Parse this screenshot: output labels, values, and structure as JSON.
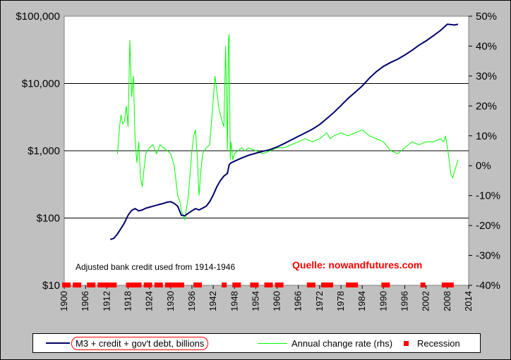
{
  "chart_data": {
    "type": "line",
    "y_scale": "log",
    "grid": "horizontal",
    "legend_placement": "bottom",
    "x_ticks": [
      1900,
      1906,
      1912,
      1918,
      1924,
      1930,
      1936,
      1942,
      1948,
      1954,
      1960,
      1966,
      1972,
      1978,
      1984,
      1990,
      1996,
      2002,
      2008,
      2014
    ],
    "xlim": [
      1900,
      2014
    ],
    "y_ticks": [
      "$10",
      "$100",
      "$1,000",
      "$10,000",
      "$100,000"
    ],
    "y_tick_values": [
      10,
      100,
      1000,
      10000,
      100000
    ],
    "ylim": [
      10,
      100000
    ],
    "y2_ticks": [
      "50%",
      "40%",
      "30%",
      "20%",
      "10%",
      "0%",
      "-10%",
      "-20%",
      "-30%",
      "-40%"
    ],
    "y2_tick_values": [
      50,
      40,
      30,
      20,
      10,
      0,
      -10,
      -20,
      -30,
      -40
    ],
    "y2lim": [
      -40,
      50
    ],
    "annotations": {
      "note": "Adjusted bank credit used from 1914-1946",
      "source": "Quelle: nowandfutures.com"
    },
    "series": [
      {
        "name": "M3 + credit + gov't debt, billions",
        "axis": "left",
        "color": "#00006a",
        "x": [
          1913,
          1914,
          1915,
          1916,
          1917,
          1918,
          1919,
          1920,
          1921,
          1922,
          1923,
          1924,
          1925,
          1926,
          1927,
          1928,
          1929,
          1930,
          1931,
          1932,
          1933,
          1934,
          1935,
          1936,
          1937,
          1938,
          1939,
          1940,
          1941,
          1942,
          1943,
          1944,
          1945,
          1946,
          1946.5,
          1947,
          1948,
          1950,
          1952,
          1954,
          1956,
          1958,
          1960,
          1962,
          1964,
          1966,
          1968,
          1970,
          1972,
          1974,
          1976,
          1978,
          1980,
          1982,
          1984,
          1986,
          1988,
          1990,
          1992,
          1994,
          1996,
          1998,
          2000,
          2002,
          2004,
          2006,
          2007,
          2008,
          2009,
          2010,
          2011
        ],
        "values": [
          48,
          50,
          58,
          70,
          85,
          110,
          130,
          138,
          128,
          132,
          140,
          145,
          150,
          155,
          160,
          165,
          172,
          175,
          165,
          150,
          110,
          108,
          118,
          128,
          138,
          132,
          140,
          150,
          175,
          220,
          290,
          360,
          420,
          460,
          620,
          660,
          700,
          780,
          860,
          920,
          980,
          1040,
          1140,
          1280,
          1450,
          1640,
          1850,
          2100,
          2450,
          3000,
          3700,
          4700,
          6000,
          7400,
          9200,
          12000,
          15000,
          18000,
          20500,
          23000,
          26500,
          31000,
          37000,
          43000,
          51000,
          61000,
          68000,
          76000,
          75000,
          74000,
          76000
        ]
      },
      {
        "name": "Annual change rate (rhs)",
        "axis": "right",
        "color": "#00ff00",
        "x": [
          1915,
          1915.6,
          1916,
          1916.5,
          1917,
          1917.5,
          1918,
          1918.5,
          1919,
          1919.5,
          1920,
          1920.5,
          1921,
          1921.5,
          1922,
          1922.5,
          1923,
          1924,
          1925,
          1926,
          1927,
          1928,
          1929,
          1930,
          1931,
          1932,
          1932.6,
          1933,
          1934,
          1935,
          1936,
          1936.5,
          1937,
          1937.5,
          1938,
          1938.5,
          1939,
          1940,
          1941,
          1942,
          1942.5,
          1943,
          1943.5,
          1944,
          1945,
          1945.5,
          1946,
          1946.3,
          1946.5,
          1946.8,
          1947,
          1947.5,
          1948,
          1949,
          1950,
          1951,
          1952,
          1954,
          1956,
          1958,
          1960,
          1962,
          1964,
          1966,
          1968,
          1970,
          1972,
          1974,
          1975,
          1976,
          1978,
          1980,
          1982,
          1984,
          1986,
          1988,
          1990,
          1992,
          1994,
          1996,
          1998,
          2000,
          2002,
          2004,
          2006,
          2007,
          2007.5,
          2008,
          2008.5,
          2009,
          2009.5,
          2010,
          2011
        ],
        "values": [
          4,
          13,
          17,
          14,
          15,
          20,
          13,
          42,
          23,
          30,
          8,
          1,
          8,
          -4,
          -7,
          -1,
          4,
          6,
          7,
          4,
          7,
          6,
          5,
          4,
          0,
          -10,
          -12,
          -15,
          -18,
          -10,
          5,
          10,
          12,
          3,
          -10,
          -2,
          4,
          6,
          7,
          22,
          30,
          25,
          20,
          17,
          13,
          40,
          5,
          42,
          44,
          2,
          8,
          2,
          4,
          5,
          6,
          5,
          6,
          5,
          4,
          5,
          6,
          6,
          7,
          8,
          9,
          8,
          9,
          11,
          9,
          10,
          11,
          10,
          11,
          12,
          10,
          9,
          8,
          5,
          4,
          6,
          8,
          7,
          8,
          8,
          9,
          8,
          10,
          6,
          2,
          -3,
          -4,
          -2,
          2
        ]
      },
      {
        "name": "Recession",
        "axis": "marker",
        "color": "#ff0000",
        "x": [
          1900,
          1901,
          1903,
          1904,
          1907,
          1908,
          1910,
          1911,
          1912,
          1913,
          1914,
          1918,
          1919,
          1920,
          1921,
          1923,
          1924,
          1926,
          1927,
          1929,
          1930,
          1931,
          1932,
          1933,
          1937,
          1938,
          1945,
          1948,
          1949,
          1953,
          1954,
          1957,
          1958,
          1960,
          1961,
          1969,
          1970,
          1973,
          1974,
          1975,
          1980,
          1981,
          1982,
          1990,
          1991,
          2001,
          2007,
          2008,
          2009
        ]
      }
    ]
  }
}
